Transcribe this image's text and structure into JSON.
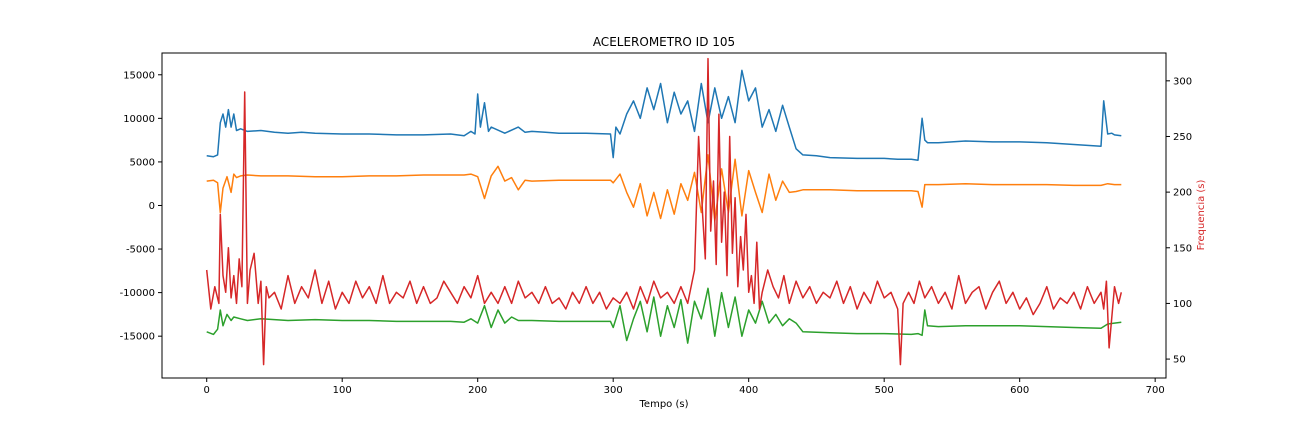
{
  "chart_data": {
    "type": "line",
    "title": "ACELEROMETRO ID 105",
    "xlabel": "Tempo (s)",
    "ylabel": "",
    "y2label": "Frequencia (s)",
    "xlim": [
      -33,
      708
    ],
    "ylim": [
      -19800,
      17500
    ],
    "y2lim": [
      33,
      325
    ],
    "xticks": [
      0,
      100,
      200,
      300,
      400,
      500,
      600,
      700
    ],
    "yticks": [
      -15000,
      -10000,
      -5000,
      0,
      5000,
      10000,
      15000
    ],
    "y2ticks": [
      50,
      100,
      150,
      200,
      250,
      300
    ],
    "grid": false,
    "legend": "none",
    "series": [
      {
        "axis": "left",
        "color": "#1f77b4",
        "x": [
          0,
          5,
          8,
          10,
          12,
          14,
          16,
          18,
          20,
          22,
          25,
          30,
          40,
          50,
          60,
          70,
          80,
          100,
          120,
          140,
          160,
          180,
          190,
          195,
          198,
          200,
          202,
          205,
          208,
          210,
          220,
          230,
          235,
          240,
          250,
          260,
          280,
          298,
          300,
          302,
          305,
          310,
          315,
          320,
          325,
          330,
          335,
          340,
          345,
          350,
          355,
          360,
          365,
          370,
          375,
          380,
          385,
          390,
          395,
          400,
          405,
          410,
          415,
          420,
          425,
          430,
          435,
          440,
          450,
          460,
          480,
          500,
          510,
          520,
          525,
          528,
          530,
          532,
          540,
          560,
          580,
          600,
          620,
          640,
          660,
          662,
          665,
          668,
          670,
          675
        ],
        "y": [
          5700,
          5600,
          5800,
          9500,
          10500,
          9000,
          11000,
          9000,
          10500,
          8600,
          8800,
          8500,
          8600,
          8400,
          8300,
          8400,
          8300,
          8200,
          8200,
          8100,
          8100,
          8200,
          8000,
          8500,
          8200,
          12800,
          9000,
          11800,
          8500,
          9000,
          8300,
          9000,
          8400,
          8500,
          8400,
          8300,
          8300,
          8200,
          5500,
          9000,
          8200,
          10500,
          12000,
          10000,
          13500,
          11000,
          14000,
          9500,
          13000,
          10500,
          12000,
          8500,
          14000,
          9500,
          13500,
          10000,
          12500,
          9500,
          15500,
          12000,
          13500,
          9000,
          11000,
          8500,
          11500,
          9000,
          6500,
          5800,
          5700,
          5500,
          5400,
          5400,
          5300,
          5300,
          5200,
          10000,
          7500,
          7200,
          7200,
          7400,
          7300,
          7300,
          7200,
          7000,
          6800,
          12000,
          8200,
          8300,
          8100,
          8000
        ]
      },
      {
        "axis": "left",
        "color": "#ff7f0e",
        "x": [
          0,
          5,
          8,
          10,
          12,
          15,
          18,
          20,
          22,
          25,
          30,
          40,
          60,
          80,
          100,
          120,
          140,
          160,
          180,
          190,
          195,
          200,
          205,
          210,
          215,
          220,
          225,
          230,
          235,
          240,
          260,
          280,
          298,
          300,
          305,
          310,
          315,
          320,
          325,
          330,
          335,
          340,
          345,
          350,
          355,
          360,
          365,
          370,
          375,
          380,
          385,
          390,
          395,
          400,
          405,
          410,
          415,
          420,
          425,
          430,
          435,
          440,
          460,
          480,
          500,
          520,
          525,
          528,
          530,
          540,
          560,
          580,
          600,
          620,
          640,
          660,
          665,
          670,
          675
        ],
        "y": [
          2800,
          2900,
          2600,
          -800,
          2000,
          3300,
          1500,
          3600,
          3200,
          3400,
          3500,
          3400,
          3400,
          3300,
          3300,
          3400,
          3400,
          3500,
          3500,
          3500,
          3600,
          3300,
          800,
          3400,
          4500,
          2800,
          3200,
          1800,
          2900,
          2800,
          2900,
          2900,
          2900,
          2600,
          3600,
          1500,
          -200,
          2500,
          -1200,
          1500,
          -1500,
          1800,
          -1000,
          2500,
          600,
          3800,
          -800,
          5800,
          -1800,
          4200,
          -800,
          5300,
          -1200,
          4000,
          1500,
          -800,
          3600,
          600,
          2800,
          1500,
          1600,
          1800,
          1800,
          1700,
          1700,
          1700,
          1600,
          -200,
          2400,
          2400,
          2500,
          2400,
          2400,
          2400,
          2300,
          2300,
          2500,
          2400,
          2400
        ]
      },
      {
        "axis": "left",
        "color": "#2ca02c",
        "x": [
          0,
          5,
          8,
          10,
          12,
          15,
          18,
          20,
          25,
          30,
          40,
          60,
          80,
          100,
          120,
          140,
          160,
          180,
          190,
          195,
          200,
          205,
          210,
          215,
          220,
          225,
          230,
          240,
          260,
          280,
          298,
          300,
          305,
          310,
          315,
          320,
          325,
          330,
          335,
          340,
          345,
          350,
          355,
          360,
          365,
          370,
          375,
          380,
          385,
          390,
          395,
          400,
          405,
          410,
          415,
          420,
          425,
          430,
          435,
          440,
          460,
          480,
          500,
          520,
          525,
          528,
          530,
          532,
          540,
          560,
          580,
          600,
          620,
          640,
          660,
          665,
          670,
          675
        ],
        "y": [
          -14500,
          -14800,
          -14200,
          -12000,
          -13800,
          -12500,
          -13200,
          -12800,
          -13000,
          -13200,
          -13000,
          -13200,
          -13100,
          -13200,
          -13200,
          -13300,
          -13300,
          -13300,
          -13400,
          -13000,
          -13500,
          -11500,
          -14000,
          -12000,
          -13500,
          -12800,
          -13200,
          -13200,
          -13300,
          -13300,
          -13300,
          -14000,
          -11500,
          -15500,
          -13000,
          -11000,
          -14500,
          -10500,
          -15000,
          -11500,
          -14000,
          -10800,
          -15800,
          -11000,
          -13000,
          -9500,
          -15000,
          -10000,
          -14000,
          -10500,
          -15000,
          -12000,
          -13500,
          -11000,
          -13500,
          -12500,
          -13800,
          -13000,
          -13500,
          -14500,
          -14600,
          -14700,
          -14700,
          -14800,
          -14700,
          -14900,
          -12000,
          -13800,
          -13900,
          -13800,
          -13800,
          -13800,
          -13900,
          -14000,
          -14100,
          -13600,
          -13500,
          -13400
        ]
      },
      {
        "axis": "right",
        "color": "#d62728",
        "x": [
          0,
          3,
          6,
          9,
          10,
          12,
          14,
          16,
          18,
          20,
          22,
          24,
          26,
          28,
          30,
          32,
          35,
          38,
          40,
          42,
          44,
          46,
          50,
          55,
          60,
          65,
          70,
          75,
          80,
          85,
          90,
          95,
          100,
          105,
          110,
          115,
          120,
          125,
          130,
          135,
          140,
          145,
          150,
          155,
          160,
          165,
          170,
          175,
          180,
          185,
          190,
          195,
          200,
          205,
          210,
          215,
          220,
          225,
          230,
          235,
          240,
          245,
          250,
          255,
          260,
          265,
          270,
          275,
          280,
          285,
          290,
          295,
          300,
          305,
          310,
          315,
          320,
          325,
          330,
          335,
          340,
          345,
          350,
          355,
          360,
          363,
          366,
          368,
          370,
          372,
          374,
          376,
          378,
          380,
          382,
          384,
          386,
          388,
          390,
          392,
          394,
          396,
          398,
          400,
          402,
          404,
          406,
          408,
          410,
          414,
          418,
          422,
          426,
          430,
          435,
          440,
          445,
          450,
          455,
          460,
          465,
          470,
          475,
          480,
          485,
          490,
          495,
          500,
          505,
          510,
          512,
          514,
          518,
          522,
          526,
          530,
          535,
          540,
          545,
          550,
          555,
          560,
          565,
          570,
          575,
          580,
          585,
          590,
          595,
          600,
          605,
          610,
          615,
          620,
          625,
          630,
          635,
          640,
          645,
          650,
          655,
          660,
          662,
          664,
          666,
          670,
          673,
          675
        ],
        "y": [
          130,
          95,
          115,
          100,
          180,
          125,
          110,
          150,
          105,
          125,
          100,
          140,
          115,
          290,
          100,
          130,
          145,
          100,
          120,
          45,
          115,
          105,
          110,
          95,
          125,
          100,
          115,
          105,
          130,
          100,
          120,
          95,
          110,
          100,
          120,
          105,
          115,
          100,
          125,
          100,
          110,
          105,
          120,
          100,
          115,
          100,
          105,
          120,
          110,
          100,
          115,
          105,
          125,
          100,
          110,
          100,
          115,
          100,
          120,
          105,
          110,
          100,
          115,
          100,
          105,
          95,
          110,
          100,
          115,
          100,
          110,
          95,
          105,
          100,
          110,
          95,
          115,
          100,
          120,
          105,
          110,
          100,
          115,
          100,
          130,
          250,
          180,
          140,
          320,
          165,
          210,
          135,
          270,
          155,
          200,
          125,
          250,
          145,
          195,
          115,
          160,
          130,
          180,
          110,
          125,
          100,
          155,
          95,
          110,
          130,
          115,
          105,
          125,
          100,
          120,
          105,
          115,
          100,
          110,
          105,
          120,
          100,
          115,
          95,
          110,
          100,
          120,
          105,
          110,
          95,
          45,
          100,
          110,
          100,
          120,
          105,
          115,
          100,
          110,
          95,
          125,
          100,
          110,
          115,
          95,
          110,
          120,
          100,
          110,
          95,
          105,
          90,
          100,
          115,
          95,
          105,
          100,
          110,
          95,
          115,
          100,
          110,
          95,
          120,
          60,
          115,
          100,
          110
        ]
      }
    ]
  }
}
